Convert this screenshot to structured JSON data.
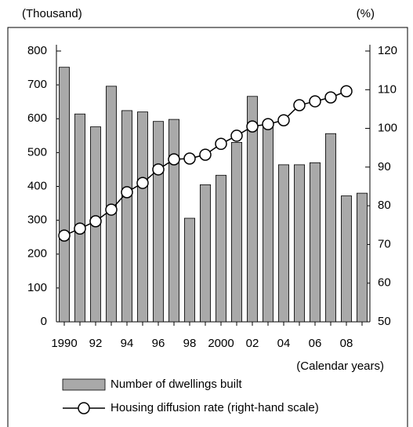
{
  "chart_data": {
    "type": "bar",
    "y_unit": "(Thousand)",
    "y2_unit": "(%)",
    "x_unit": "(Calendar years)",
    "categories": [
      "1990",
      null,
      "92",
      null,
      "94",
      null,
      "96",
      null,
      "98",
      null,
      "2000",
      null,
      "02",
      null,
      "04",
      null,
      "06",
      null,
      "08",
      null
    ],
    "series": [
      {
        "name": "Number of dwellings built",
        "type": "bar",
        "color": "#a9a9a9",
        "values": [
          752,
          614,
          576,
          696,
          624,
          620,
          592,
          598,
          306,
          405,
          433,
          530,
          666,
          590,
          464,
          464,
          470,
          556,
          372,
          380
        ]
      },
      {
        "name": "Housing diffusion rate (right-hand scale)",
        "type": "line",
        "axis": "y2",
        "color": "#000000",
        "values": [
          72.3,
          74.1,
          76.0,
          79.0,
          83.5,
          85.9,
          89.4,
          92.0,
          92.2,
          93.2,
          96.0,
          98.1,
          100.5,
          101.1,
          102.1,
          106.0,
          107.0,
          108.0,
          109.6,
          null
        ]
      }
    ],
    "ylim": [
      0,
      800
    ],
    "yticks": [
      0,
      100,
      200,
      300,
      400,
      500,
      600,
      700,
      800
    ],
    "y2lim": [
      50,
      120
    ],
    "y2ticks": [
      50,
      60,
      70,
      80,
      90,
      100,
      110,
      120
    ]
  }
}
